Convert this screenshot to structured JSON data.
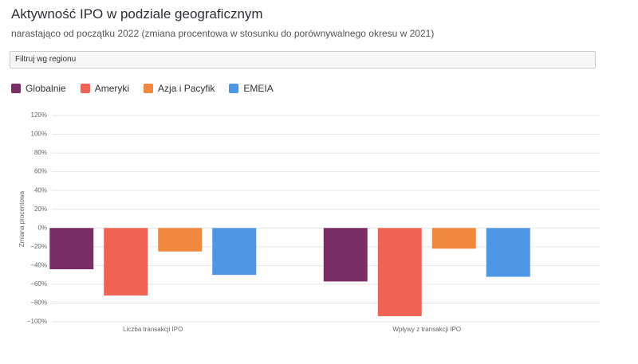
{
  "chart_data": {
    "type": "bar",
    "title": "Aktywność IPO w podziale geograficznym",
    "subtitle": "narastająco od początku 2022 (zmiana procentowa w stosunku do porównywalnego okresu w 2021)",
    "filter_placeholder": "Filtruj wg regionu",
    "y_label": "Zmiana procentowa",
    "categories": [
      "Liczba transakcji IPO",
      "Wpływy z transakcji IPO"
    ],
    "series": [
      {
        "name": "Globalnie",
        "color": "#7b2d66",
        "values": [
          -44,
          -57
        ]
      },
      {
        "name": "Ameryki",
        "color": "#ee6352",
        "values": [
          -72,
          -94
        ]
      },
      {
        "name": "Azja i Pacyfik",
        "color": "#f0883e",
        "values": [
          -25,
          -22
        ]
      },
      {
        "name": "EMEIA",
        "color": "#4f97e3",
        "values": [
          -50,
          -52
        ]
      }
    ],
    "ylim": [
      -100,
      120
    ],
    "yticks": [
      {
        "value": -100,
        "label": "−100%"
      },
      {
        "value": -80,
        "label": "−80%"
      },
      {
        "value": -60,
        "label": "−60%"
      },
      {
        "value": -40,
        "label": "−40%"
      },
      {
        "value": -20,
        "label": "−20%"
      },
      {
        "value": 0,
        "label": "0%"
      },
      {
        "value": 20,
        "label": "20%"
      },
      {
        "value": 40,
        "label": "40%"
      },
      {
        "value": 60,
        "label": "60%"
      },
      {
        "value": 80,
        "label": "80%"
      },
      {
        "value": 100,
        "label": "100%"
      },
      {
        "value": 120,
        "label": "120%"
      }
    ],
    "grid": true
  }
}
